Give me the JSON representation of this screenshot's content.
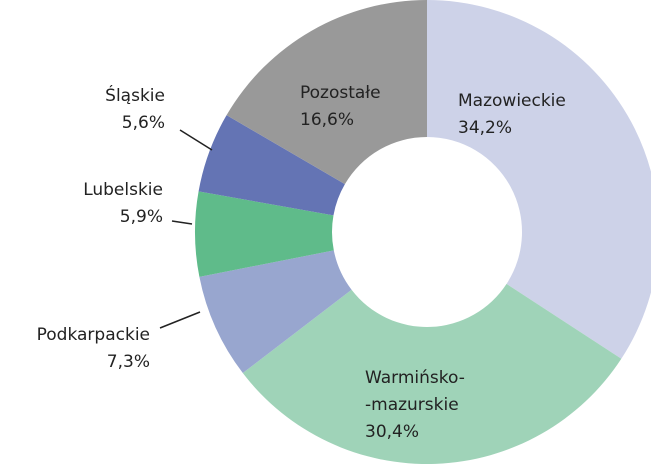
{
  "chart_data": {
    "type": "donut",
    "categories": [
      "Mazowieckie",
      "Warmińsko-\n-mazurskie",
      "Podkarpackie",
      "Lubelskie",
      "Śląskie",
      "Pozostałe"
    ],
    "values": [
      34.2,
      30.4,
      7.3,
      5.9,
      5.6,
      16.6
    ],
    "value_labels": [
      "34,2%",
      "30,4%",
      "7,3%",
      "5,9%",
      "5,6%",
      "16,6%"
    ],
    "colors": [
      "#cdd2e8",
      "#9fd3b8",
      "#98a6cf",
      "#5fbb8a",
      "#6474b4",
      "#999999"
    ]
  }
}
